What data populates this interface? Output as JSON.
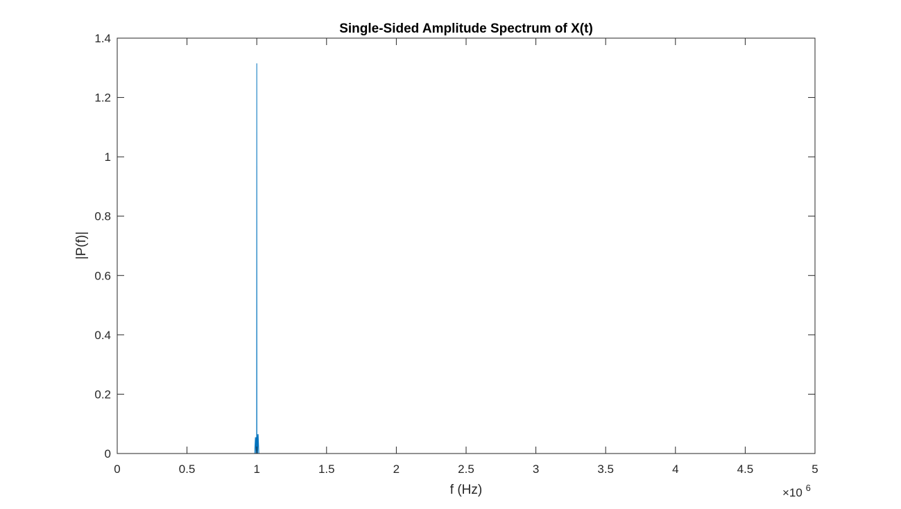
{
  "chart_data": {
    "type": "line",
    "title": "Single-Sided Amplitude Spectrum of X(t)",
    "xlabel": "f (Hz)",
    "ylabel": "|P(f)|",
    "xlim": [
      0,
      5000000
    ],
    "ylim": [
      0,
      1.4
    ],
    "x_exponent_label": {
      "base": "×10",
      "power": "6"
    },
    "x_ticks": [
      0,
      500000,
      1000000,
      1500000,
      2000000,
      2500000,
      3000000,
      3500000,
      4000000,
      4500000,
      5000000
    ],
    "x_tick_labels": [
      "0",
      "0.5",
      "1",
      "1.5",
      "2",
      "2.5",
      "3",
      "3.5",
      "4",
      "4.5",
      "5"
    ],
    "y_ticks": [
      0,
      0.2,
      0.4,
      0.6,
      0.8,
      1.0,
      1.2,
      1.4
    ],
    "y_tick_labels": [
      "0",
      "0.2",
      "0.4",
      "0.6",
      "0.8",
      "1",
      "1.2",
      "1.4"
    ],
    "grid": false,
    "series": [
      {
        "color": "#0072bd",
        "x": [
          0,
          985000,
          990000,
          993000,
          996000,
          999000,
          1000000,
          1001000,
          1004000,
          1007000,
          1010000,
          1015000,
          1020000,
          5000000
        ],
        "y": [
          0,
          0,
          0.055,
          0,
          0.055,
          0,
          1.315,
          0,
          0.065,
          0,
          0.065,
          0,
          0,
          0
        ]
      }
    ]
  }
}
